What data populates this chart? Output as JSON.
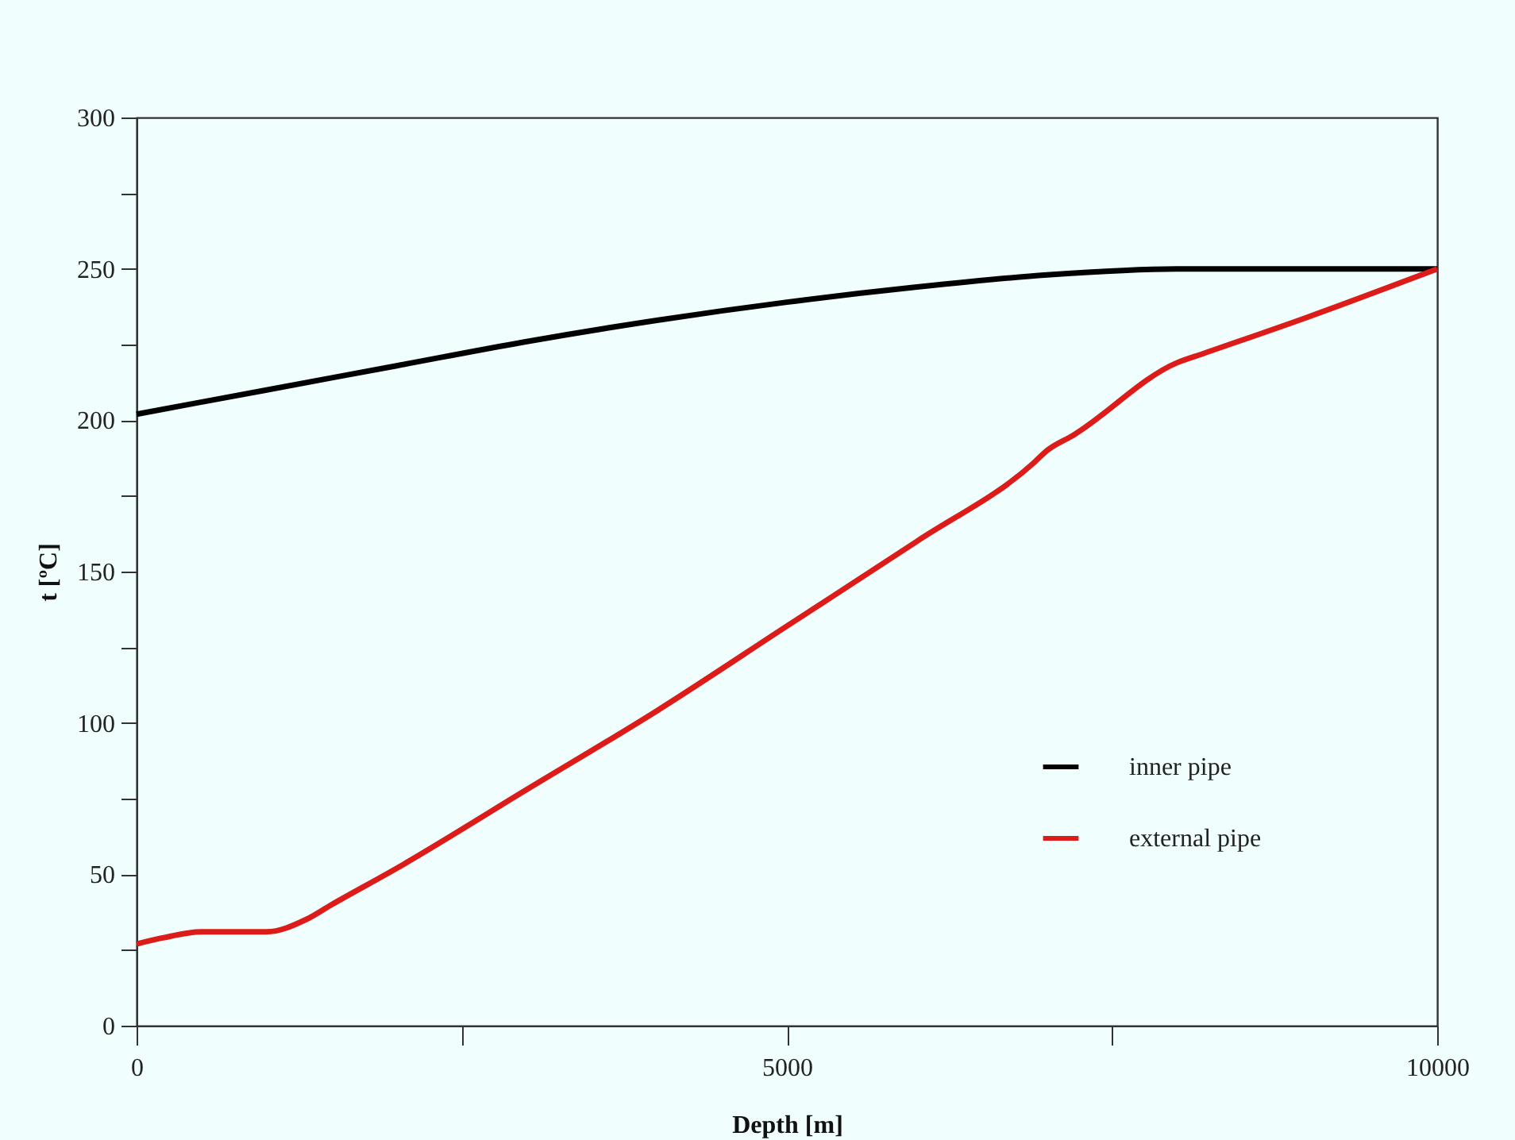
{
  "chart_data": {
    "type": "line",
    "xlabel": "Depth [m]",
    "ylabel": "t [ºC]",
    "xlim": [
      0,
      10000
    ],
    "xticks": [
      0,
      {
        "value": 2500,
        "label": null
      },
      5000,
      {
        "value": 7500,
        "label": null
      },
      10000
    ],
    "ylim": [
      0,
      300
    ],
    "yticks": [
      0,
      {
        "value": 25,
        "label": null
      },
      50,
      {
        "value": 75,
        "label": null
      },
      100,
      {
        "value": 125,
        "label": null
      },
      150,
      {
        "value": 175,
        "label": null
      },
      200,
      {
        "value": 225,
        "label": null
      },
      250,
      {
        "value": 275,
        "label": null
      },
      300
    ],
    "legend": "bottom right",
    "grid": false,
    "series": [
      {
        "name": "inner pipe",
        "color": "#000000",
        "x": [
          0,
          1000,
          2000,
          3000,
          4000,
          5000,
          6000,
          7000,
          8000,
          9000,
          10000
        ],
        "values": [
          202,
          210,
          218,
          226,
          233,
          239,
          244,
          248,
          250,
          250,
          250
        ]
      },
      {
        "name": "external pipe",
        "color": "#dd1c1a",
        "x": [
          0,
          200,
          500,
          1000,
          1300,
          1500,
          2000,
          3000,
          4000,
          5000,
          6000,
          6900,
          7000,
          7200,
          8000,
          8200,
          9000,
          10000
        ],
        "values": [
          27,
          29,
          31,
          31,
          35,
          40,
          52,
          78,
          104,
          132,
          160,
          186,
          190,
          195,
          219,
          222,
          234,
          250
        ]
      }
    ]
  }
}
